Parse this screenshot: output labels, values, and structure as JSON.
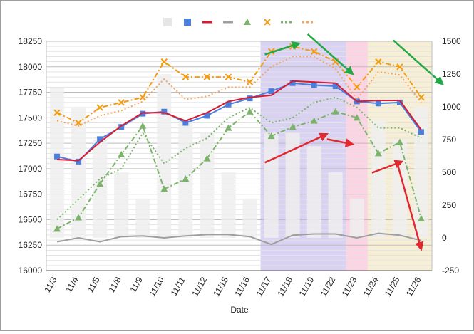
{
  "chart_data": {
    "type": "combo",
    "xlabel": "Date",
    "categories": [
      "11/3",
      "11/4",
      "11/5",
      "11/8",
      "11/9",
      "11/10",
      "11/11",
      "11/12",
      "11/15",
      "11/16",
      "11/17",
      "11/18",
      "11/19",
      "11/22",
      "11/23",
      "11/24",
      "11/25",
      "11/26"
    ],
    "y_left": {
      "min": 16000,
      "max": 18250,
      "step": 250,
      "ticks": [
        "16000",
        "16250",
        "16500",
        "16750",
        "17000",
        "17250",
        "17500",
        "17750",
        "18000",
        "18250"
      ]
    },
    "y_right": {
      "min": -250,
      "max": 1500,
      "step": 250,
      "ticks": [
        "-250",
        "0",
        "250",
        "500",
        "750",
        "1000",
        "1250",
        "1500"
      ]
    },
    "grid": true,
    "legend_position": "top",
    "highlight_bands": [
      {
        "from": "11/17",
        "to": "11/22",
        "color": "#d9d2f2"
      },
      {
        "from": "11/23",
        "to": "11/23",
        "color": "#fcd3e3"
      },
      {
        "from": "11/24",
        "to": "11/26",
        "color": "#f7efd5"
      }
    ],
    "series": [
      {
        "type": "bar",
        "axis": "right",
        "color": "#eeeeee",
        "values": [
          1150,
          1000,
          750,
          500,
          300,
          1250,
          900,
          800,
          500,
          300,
          800,
          800,
          700,
          500,
          300,
          900,
          750,
          1000
        ]
      },
      {
        "type": "line",
        "axis": "left",
        "color": "#4a7fdc",
        "marker": "square",
        "dash": "solid",
        "values": [
          17120,
          17070,
          17290,
          17410,
          17540,
          17560,
          17450,
          17520,
          17630,
          17690,
          17760,
          17840,
          17820,
          17810,
          17660,
          17640,
          17650,
          17360
        ]
      },
      {
        "type": "line",
        "axis": "left",
        "color": "#d81b34",
        "marker": "none",
        "dash": "solid",
        "values": [
          17090,
          17080,
          17260,
          17420,
          17550,
          17550,
          17470,
          17550,
          17660,
          17700,
          17720,
          17860,
          17850,
          17840,
          17660,
          17670,
          17670,
          17380
        ]
      },
      {
        "type": "line",
        "axis": "right",
        "color": "#9e9e9e",
        "marker": "none",
        "dash": "solid",
        "values": [
          -30,
          0,
          -30,
          10,
          15,
          0,
          15,
          25,
          25,
          10,
          -50,
          20,
          30,
          30,
          0,
          35,
          20,
          -20
        ]
      },
      {
        "type": "line",
        "axis": "left",
        "color": "#7cb36a",
        "marker": "triangle",
        "dash": "dash-dot",
        "values": [
          16410,
          16520,
          16850,
          17140,
          17420,
          16800,
          16900,
          17100,
          17400,
          17560,
          17320,
          17410,
          17470,
          17560,
          17500,
          17150,
          17260,
          16510
        ]
      },
      {
        "type": "line",
        "axis": "left",
        "color": "#f39c12",
        "marker": "x",
        "dash": "dash-dot",
        "values": [
          17550,
          17450,
          17600,
          17650,
          17700,
          18050,
          17900,
          17900,
          17900,
          17850,
          18150,
          18200,
          18150,
          18050,
          17800,
          18050,
          18000,
          17700
        ]
      },
      {
        "type": "line",
        "axis": "left",
        "color": "#7cb36a",
        "marker": "none",
        "dash": "dot",
        "values": [
          16500,
          16700,
          16900,
          17000,
          17350,
          17050,
          17200,
          17300,
          17500,
          17600,
          17450,
          17500,
          17650,
          17700,
          17600,
          17400,
          17400,
          17300
        ]
      },
      {
        "type": "line",
        "axis": "left",
        "color": "#f4a460",
        "marker": "none",
        "dash": "dot",
        "values": [
          17470,
          17420,
          17520,
          17570,
          17660,
          17880,
          17680,
          17710,
          17800,
          17800,
          18000,
          18100,
          18100,
          17980,
          17680,
          17950,
          17920,
          17650
        ]
      }
    ],
    "annotations": [
      {
        "type": "arrow",
        "color": "#22a845",
        "from": [
          10.2,
          18120
        ],
        "to": [
          11.8,
          18230
        ]
      },
      {
        "type": "arrow",
        "color": "#22a845",
        "from": [
          12.2,
          18320
        ],
        "to": [
          14.3,
          17930
        ]
      },
      {
        "type": "arrow",
        "color": "#22a845",
        "from": [
          16.2,
          18260
        ],
        "to": [
          18.5,
          17830
        ]
      },
      {
        "type": "arrow",
        "color": "#e0282e",
        "from": [
          10.2,
          17060
        ],
        "to": [
          13.1,
          17340
        ]
      },
      {
        "type": "arrow",
        "color": "#e0282e",
        "from": [
          13.1,
          17290
        ],
        "to": [
          14.3,
          17240
        ]
      },
      {
        "type": "arrow",
        "color": "#e0282e",
        "from": [
          15.2,
          16960
        ],
        "to": [
          16.6,
          17070
        ]
      },
      {
        "type": "arrow",
        "color": "#e0282e",
        "from": [
          16.4,
          17040
        ],
        "to": [
          17.5,
          16210
        ]
      }
    ]
  }
}
